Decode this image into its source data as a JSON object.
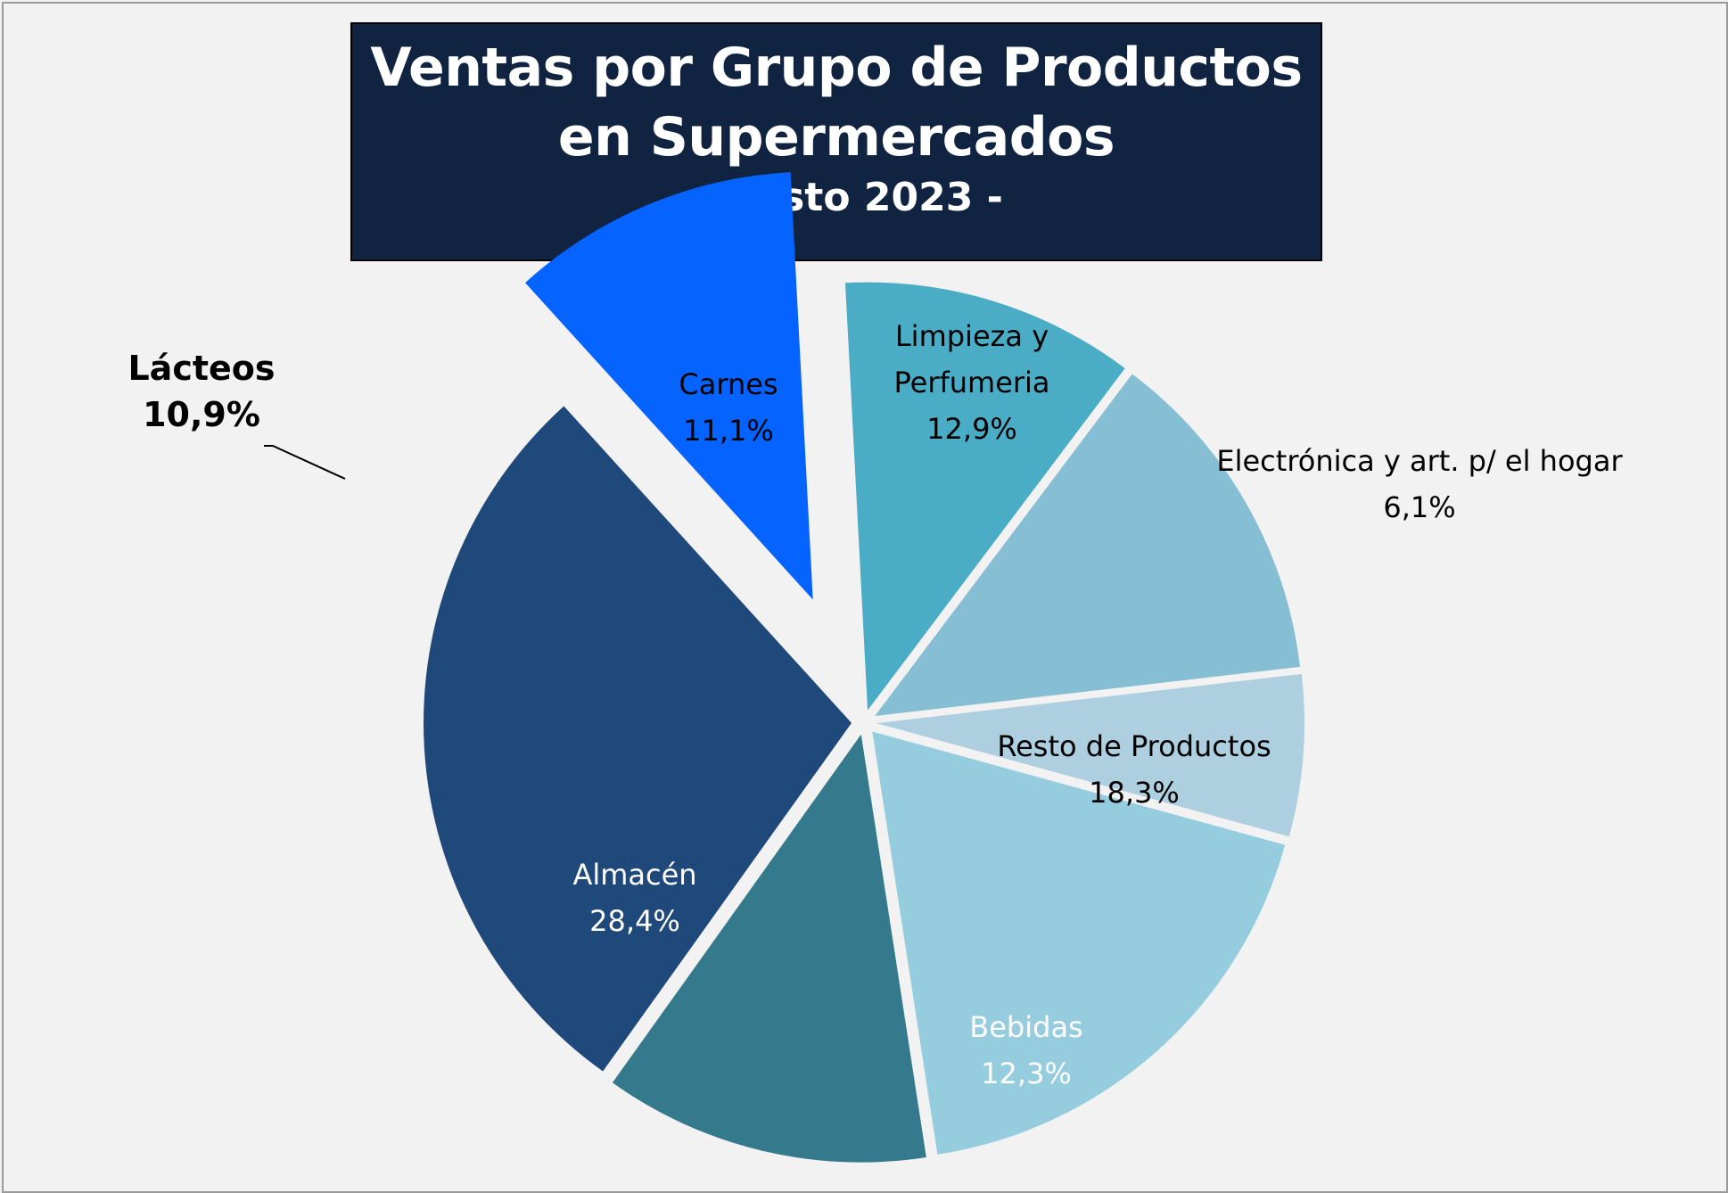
{
  "chart_data": {
    "type": "pie",
    "title": "Ventas por Grupo de Productos en Supermercados",
    "subtitle": "- agosto 2023 -",
    "slices": [
      {
        "label": "Carnes",
        "value": 11.1,
        "value_label": "11,1%",
        "color": "#4BACC6"
      },
      {
        "label": "Limpieza y Perfumeria",
        "label_lines": [
          "Limpieza y",
          "Perfumeria"
        ],
        "value": 12.9,
        "value_label": "12,9%",
        "color": "#86BFD3"
      },
      {
        "label": "Electrónica y art. p/ el hogar",
        "value": 6.1,
        "value_label": "6,1%",
        "color": "#ADCFDF"
      },
      {
        "label": "Resto de Productos",
        "value": 18.3,
        "value_label": "18,3%",
        "color": "#95CDDF"
      },
      {
        "label": "Bebidas",
        "value": 12.3,
        "value_label": "12,3%",
        "color": "#347A8C"
      },
      {
        "label": "Almacén",
        "value": 28.4,
        "value_label": "28,4%",
        "color": "#1F487B"
      },
      {
        "label": "Lácteos",
        "value": 10.9,
        "value_label": "10,9%",
        "color": "#0563FF",
        "exploded": true,
        "emphasis": true
      }
    ]
  }
}
